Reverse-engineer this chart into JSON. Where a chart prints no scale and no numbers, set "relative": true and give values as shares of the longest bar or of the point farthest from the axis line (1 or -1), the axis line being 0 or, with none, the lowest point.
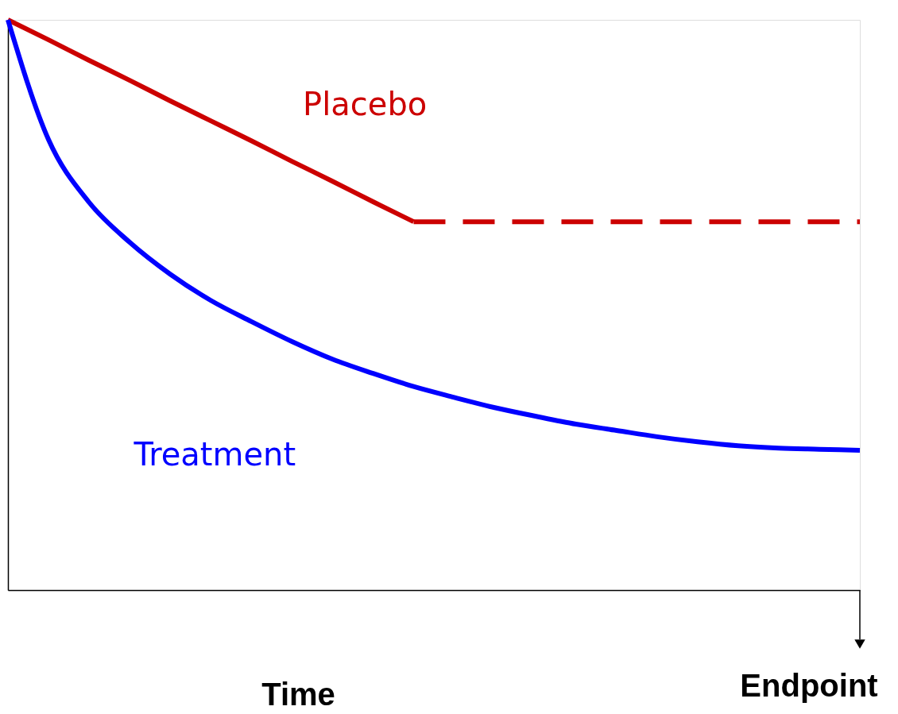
{
  "chart_data": {
    "type": "line",
    "relative": true,
    "xlabel": "Time",
    "annotations": [
      "Endpoint"
    ],
    "grid": false,
    "tick_labels": false,
    "marker": "none",
    "categories": [
      null,
      null,
      null,
      null,
      null,
      null,
      null,
      null,
      null,
      null,
      null,
      null,
      null,
      null,
      null,
      null,
      null,
      null,
      null,
      null,
      null,
      null
    ],
    "series": [
      {
        "name": "Placebo",
        "color": "#cc0000",
        "line_style": "solid",
        "values": [
          1.0,
          0.965,
          0.929,
          0.894,
          0.858,
          0.823,
          0.788,
          0.752,
          0.717,
          0.681,
          0.646,
          null,
          null,
          null,
          null,
          null,
          null,
          null,
          null,
          null,
          null,
          null
        ]
      },
      {
        "name": "Treatment",
        "color": "#0000ff",
        "line_style": "solid",
        "values": [
          1.0,
          0.79,
          0.68,
          0.61,
          0.554,
          0.508,
          0.471,
          0.436,
          0.405,
          0.38,
          0.357,
          0.338,
          0.32,
          0.305,
          0.291,
          0.28,
          0.269,
          0.26,
          0.253,
          0.249,
          0.247,
          0.245
        ]
      },
      {
        "color": "#cc0000",
        "line_style": "dashed",
        "values": [
          null,
          null,
          null,
          null,
          null,
          null,
          null,
          null,
          null,
          null,
          0.646,
          0.646,
          0.646,
          0.646,
          0.646,
          0.646,
          0.646,
          0.646,
          0.646,
          0.646,
          0.646,
          0.646
        ]
      }
    ]
  }
}
